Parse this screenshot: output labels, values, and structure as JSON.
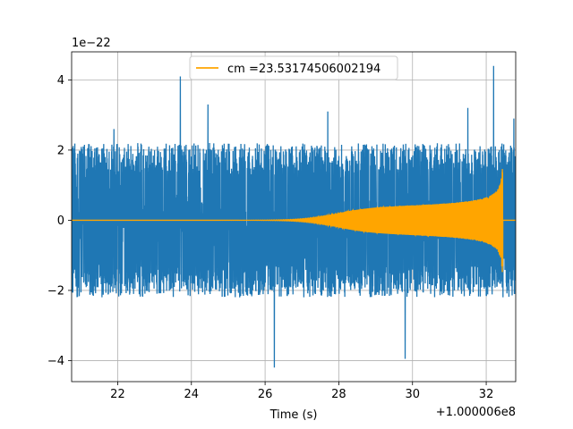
{
  "chart_data": {
    "type": "line",
    "xlabel": "Time (s)",
    "ylabel": "",
    "x_offset_label": "+1.000006e8",
    "y_scale_label": "1e−22",
    "xlim": [
      20.75,
      32.8
    ],
    "ylim": [
      -4.6,
      4.8
    ],
    "x_ticks": [
      22,
      24,
      26,
      28,
      30,
      32
    ],
    "x_tick_labels": [
      "22",
      "24",
      "26",
      "28",
      "30",
      "32"
    ],
    "y_ticks": [
      -4,
      -2,
      0,
      2,
      4
    ],
    "y_tick_labels": [
      "−4",
      "−2",
      "0",
      "2",
      "4"
    ],
    "grid": true,
    "legend_position": "top-center",
    "series": [
      {
        "kind": "noise",
        "color": "#1f77b4",
        "x_range": [
          20.75,
          32.8
        ],
        "typical_envelope": 2.3,
        "notable_peaks": [
          {
            "x": 21.9,
            "y": 2.6
          },
          {
            "x": 23.7,
            "y": 4.1
          },
          {
            "x": 24.45,
            "y": 3.3
          },
          {
            "x": 26.25,
            "y": -4.2
          },
          {
            "x": 27.7,
            "y": 3.1
          },
          {
            "x": 29.8,
            "y": -3.95
          },
          {
            "x": 31.5,
            "y": 3.2
          },
          {
            "x": 32.2,
            "y": 4.4
          },
          {
            "x": 32.75,
            "y": 2.9
          }
        ]
      },
      {
        "name": "cm =23.53174506002194",
        "kind": "chirp",
        "color": "#ffa500",
        "x_range": [
          20.75,
          32.8
        ],
        "merger_time": 32.45,
        "peak_amplitude": 1.75
      }
    ]
  }
}
